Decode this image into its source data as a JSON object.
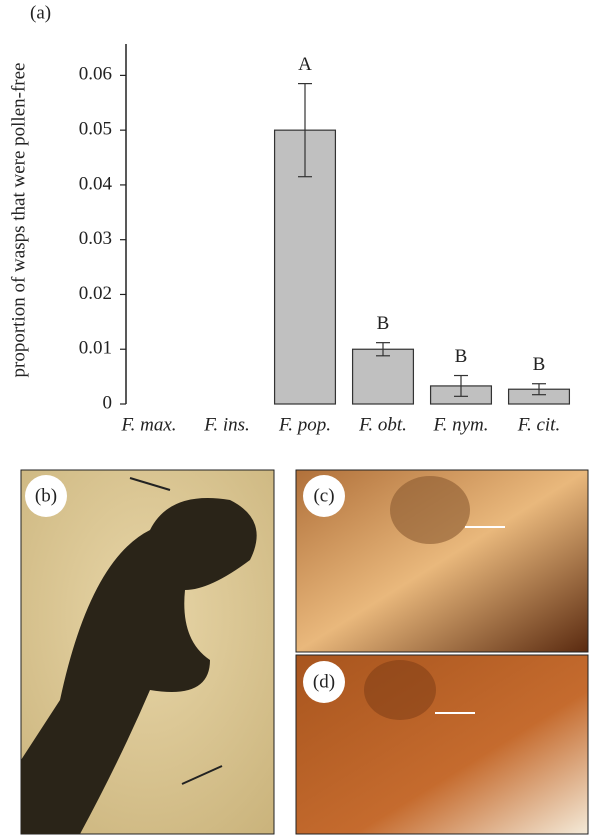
{
  "chart_data": {
    "type": "bar",
    "panel_label": "(a)",
    "ylabel": "proportion of wasps that were pollen-free",
    "categories": [
      "F. max.",
      "F. ins.",
      "F. pop.",
      "F. obt.",
      "F. nym.",
      "F. cit."
    ],
    "values": [
      0,
      0,
      0.05,
      0.01,
      0.0033,
      0.0027
    ],
    "errors": [
      0,
      0,
      0.0085,
      0.0012,
      0.0019,
      0.001
    ],
    "letters": [
      null,
      null,
      "A",
      "B",
      "B",
      "B"
    ],
    "color": "#c0c0c0",
    "ylim": [
      0,
      0.065
    ],
    "yticks": [
      0,
      0.01,
      0.02,
      0.03,
      0.04,
      0.05,
      0.06
    ]
  },
  "panel_labels": [
    "(b)",
    "(c)",
    "(d)"
  ]
}
